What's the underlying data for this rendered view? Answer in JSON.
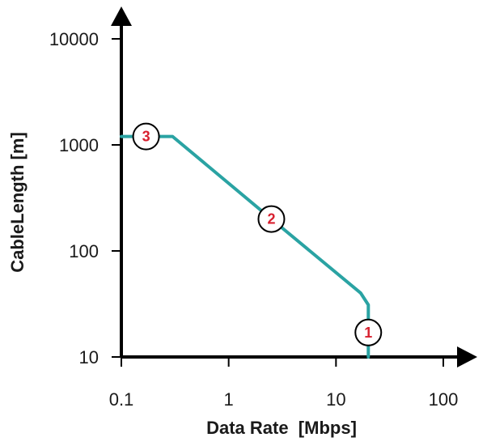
{
  "chart_data": {
    "type": "line",
    "xlabel": "Data Rate  [Mbps]",
    "ylabel": "CableLength [m]",
    "xscale": "log",
    "yscale": "log",
    "xlim": [
      0.1,
      100
    ],
    "ylim": [
      10,
      10000
    ],
    "x_ticks": [
      0.1,
      1,
      10,
      100
    ],
    "x_tick_labels": [
      "0.1",
      "1",
      "10",
      "100"
    ],
    "y_ticks": [
      10,
      100,
      1000,
      10000
    ],
    "y_tick_labels": [
      "10",
      "100",
      "1000",
      "10000"
    ],
    "grid": false,
    "line_color": "#2aa3a3",
    "marker_text_color": "#d8202f",
    "series": [
      {
        "x": [
          0.1,
          0.3,
          2.5,
          17,
          20,
          20
        ],
        "y": [
          1200,
          1200,
          200,
          40,
          31,
          10
        ]
      }
    ],
    "annotations": [
      {
        "text": "3",
        "x": 0.17,
        "y": 1200
      },
      {
        "text": "2",
        "x": 2.5,
        "y": 200
      },
      {
        "text": "1",
        "x": 20,
        "y": 17
      }
    ]
  }
}
